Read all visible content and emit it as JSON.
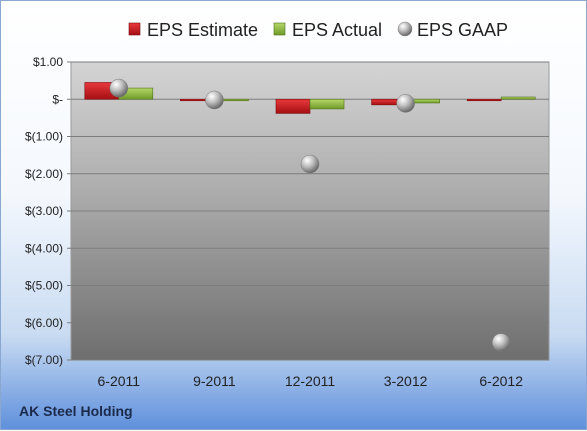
{
  "chart_data": {
    "type": "bar",
    "categories": [
      "6-2011",
      "9-2011",
      "12-2011",
      "3-2012",
      "6-2012"
    ],
    "series": [
      {
        "name": "EPS Estimate",
        "kind": "bar",
        "color": "#c0161a",
        "values": [
          0.45,
          -0.02,
          -0.38,
          -0.15,
          -0.02
        ]
      },
      {
        "name": "EPS Actual",
        "kind": "bar",
        "color": "#8fbb3c",
        "values": [
          0.3,
          -0.02,
          -0.26,
          -0.1,
          0.06
        ]
      },
      {
        "name": "EPS GAAP",
        "kind": "marker",
        "color": "#b8b8b8",
        "values": [
          0.3,
          -0.02,
          -1.74,
          -0.11,
          -6.53
        ]
      }
    ],
    "yticks": [
      "$1.00",
      "$-",
      "$(1.00)",
      "$(2.00)",
      "$(3.00)",
      "$(4.00)",
      "$(5.00)",
      "$(6.00)",
      "$(7.00)"
    ],
    "ytick_values": [
      1,
      0,
      -1,
      -2,
      -3,
      -4,
      -5,
      -6,
      -7
    ],
    "ylim": [
      -7,
      1
    ],
    "grid": true,
    "legend_position": "top"
  },
  "footer": {
    "company": "AK Steel Holding"
  }
}
